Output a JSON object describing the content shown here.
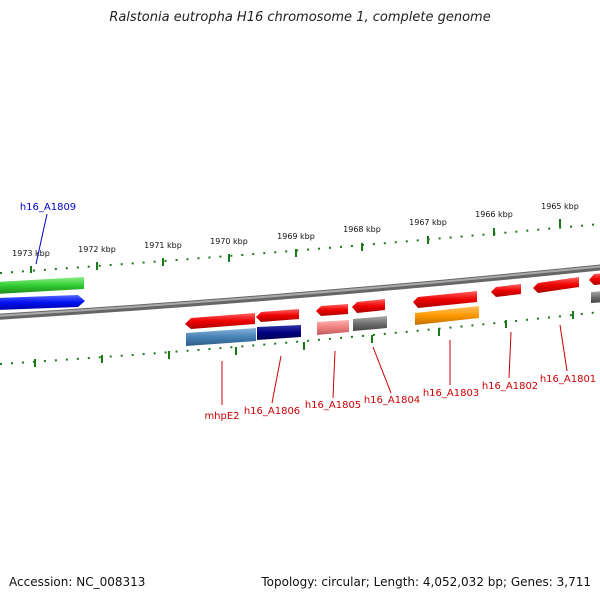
{
  "title": "Ralstonia eutropha H16 chromosome 1, complete genome",
  "footer": {
    "accession": "Accession: NC_008313",
    "topology": "Topology: circular; Length: 4,052,032 bp; Genes: 3,711"
  },
  "scale": {
    "ticks": [
      "1973 kbp",
      "1972 kbp",
      "1971 kbp",
      "1970 kbp",
      "1969 kbp",
      "1968 kbp",
      "1967 kbp",
      "1966 kbp",
      "1965 kbp"
    ]
  },
  "genes": [
    {
      "label": "h16_A1809",
      "color": "#0000cc"
    },
    {
      "label": "mhpE2",
      "color": "#cc0000"
    },
    {
      "label": "h16_A1806",
      "color": "#cc0000"
    },
    {
      "label": "h16_A1805",
      "color": "#cc0000"
    },
    {
      "label": "h16_A1804",
      "color": "#cc0000"
    },
    {
      "label": "h16_A1803",
      "color": "#cc0000"
    },
    {
      "label": "h16_A1802",
      "color": "#cc0000"
    },
    {
      "label": "h16_A1801",
      "color": "#cc0000"
    }
  ]
}
